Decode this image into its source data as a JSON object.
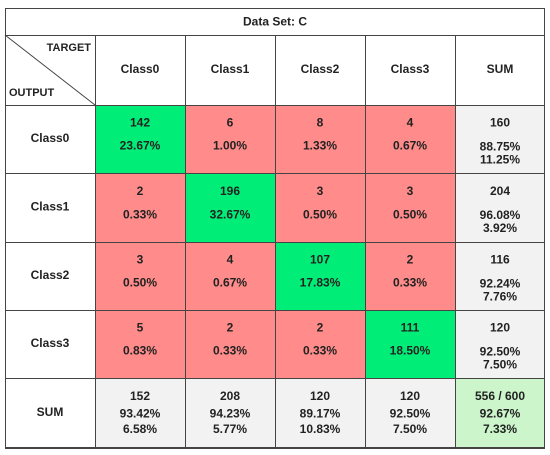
{
  "colors": {
    "correct": "#00ee77",
    "wrong": "#ff8c8a",
    "sum_cell": "#f2f2f2",
    "total_cell": "#ccf5cc",
    "good_text": "#008800",
    "bad_text": "#e80000",
    "grid": "#444444"
  },
  "chart_data": {
    "type": "table",
    "title": "Data Set: C",
    "corner": {
      "target_label": "TARGET",
      "output_label": "OUTPUT"
    },
    "columns": [
      "Class0",
      "Class1",
      "Class2",
      "Class3"
    ],
    "rows": [
      "Class0",
      "Class1",
      "Class2",
      "Class3"
    ],
    "sum_label": "SUM",
    "matrix": [
      [
        {
          "count": "142",
          "pct": "23.67%"
        },
        {
          "count": "6",
          "pct": "1.00%"
        },
        {
          "count": "8",
          "pct": "1.33%"
        },
        {
          "count": "4",
          "pct": "0.67%"
        }
      ],
      [
        {
          "count": "2",
          "pct": "0.33%"
        },
        {
          "count": "196",
          "pct": "32.67%"
        },
        {
          "count": "3",
          "pct": "0.50%"
        },
        {
          "count": "3",
          "pct": "0.50%"
        }
      ],
      [
        {
          "count": "3",
          "pct": "0.50%"
        },
        {
          "count": "4",
          "pct": "0.67%"
        },
        {
          "count": "107",
          "pct": "17.83%"
        },
        {
          "count": "2",
          "pct": "0.33%"
        }
      ],
      [
        {
          "count": "5",
          "pct": "0.83%"
        },
        {
          "count": "2",
          "pct": "0.33%"
        },
        {
          "count": "2",
          "pct": "0.33%"
        },
        {
          "count": "111",
          "pct": "18.50%"
        }
      ]
    ],
    "row_sums": [
      {
        "count": "160",
        "good": "88.75%",
        "bad": "11.25%"
      },
      {
        "count": "204",
        "good": "96.08%",
        "bad": "3.92%"
      },
      {
        "count": "116",
        "good": "92.24%",
        "bad": "7.76%"
      },
      {
        "count": "120",
        "good": "92.50%",
        "bad": "7.50%"
      }
    ],
    "col_sums": [
      {
        "count": "152",
        "good": "93.42%",
        "bad": "6.58%"
      },
      {
        "count": "208",
        "good": "94.23%",
        "bad": "5.77%"
      },
      {
        "count": "120",
        "good": "89.17%",
        "bad": "10.83%"
      },
      {
        "count": "120",
        "good": "92.50%",
        "bad": "7.50%"
      }
    ],
    "total": {
      "count": "556 / 600",
      "good": "92.67%",
      "bad": "7.33%"
    }
  }
}
